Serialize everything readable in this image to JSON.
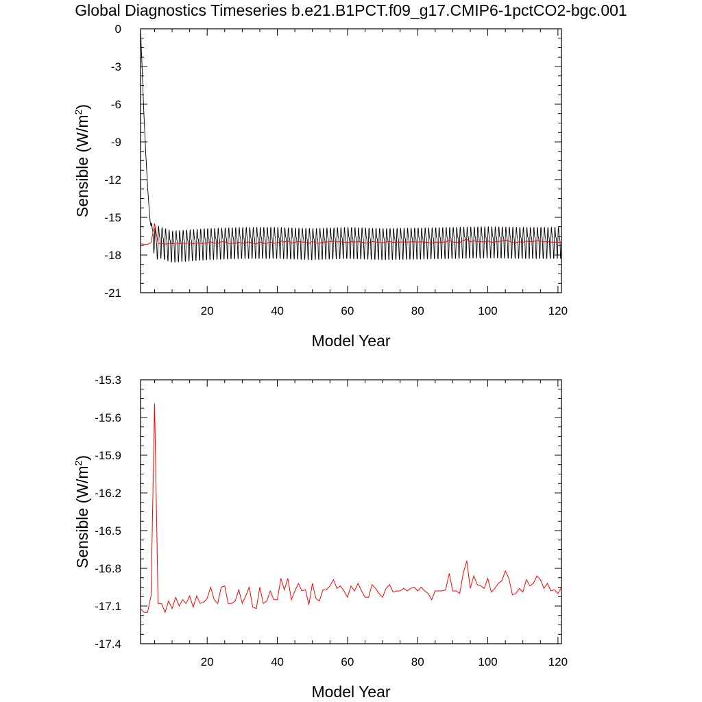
{
  "title": "Global Diagnostics Timeseries b.e21.B1PCT.f09_g17.CMIP6-1pctCO2-bgc.001",
  "colors": {
    "monthly": "#000000",
    "annual": "#ff0000"
  },
  "chart_data": [
    {
      "type": "line",
      "xlabel": "Model Year",
      "ylabel": "Sensible (W/m",
      "ylabel_sup": "2",
      "ylabel_end": ")",
      "xlim": [
        1,
        121
      ],
      "ylim": [
        -21,
        0
      ],
      "xticks": [
        20,
        40,
        60,
        80,
        100,
        120
      ],
      "xtick_labels": [
        "20",
        "40",
        "60",
        "80",
        "100",
        "120"
      ],
      "yticks": [
        0,
        -3,
        -6,
        -9,
        -12,
        -15,
        -18,
        -21
      ],
      "ytick_labels": [
        "0",
        "-3",
        "-6",
        "-9",
        "-12",
        "-15",
        "-18",
        "-21"
      ],
      "grid": false,
      "series": [
        {
          "style": "monthly",
          "x": [
            1,
            1.5,
            2,
            2.5,
            3,
            3.5,
            4,
            4.5,
            5,
            5.5,
            6,
            10,
            15,
            20,
            30,
            40,
            50,
            60,
            70,
            80,
            90,
            100,
            110,
            121
          ],
          "y": [
            0,
            -3.5,
            -7.0,
            -10.0,
            -12.5,
            -14.5,
            -15.8,
            -16.3,
            -16.8,
            -17.2,
            -16.8,
            -17.2,
            -17.1,
            -17.0,
            -16.9,
            -16.9,
            -17.0,
            -16.9,
            -17.0,
            -16.95,
            -16.9,
            -16.85,
            -16.9,
            -16.9
          ],
          "seasonal_amplitude": 1.4
        },
        {
          "style": "annual",
          "x": [
            1,
            2,
            3,
            4,
            5,
            6,
            7,
            8,
            9,
            10,
            11,
            12,
            13,
            14,
            15,
            16,
            17,
            18,
            19,
            20,
            21,
            22,
            23,
            24,
            25,
            26,
            27,
            28,
            29,
            30,
            31,
            32,
            33,
            34,
            35,
            36,
            37,
            38,
            39,
            40,
            41,
            42,
            43,
            44,
            45,
            46,
            47,
            48,
            49,
            50,
            51,
            52,
            53,
            54,
            55,
            56,
            57,
            58,
            59,
            60,
            61,
            62,
            63,
            64,
            65,
            66,
            67,
            68,
            69,
            70,
            71,
            72,
            73,
            74,
            75,
            76,
            77,
            78,
            79,
            80,
            81,
            82,
            83,
            84,
            85,
            86,
            87,
            88,
            89,
            90,
            91,
            92,
            93,
            94,
            95,
            96,
            97,
            98,
            99,
            100,
            101,
            102,
            103,
            104,
            105,
            106,
            107,
            108,
            109,
            110,
            111,
            112,
            113,
            114,
            115,
            116,
            117,
            118,
            119,
            120,
            121
          ],
          "y": [
            -17.12,
            -17.15,
            -17.15,
            -17.02,
            -15.49,
            -17.08,
            -17.08,
            -17.15,
            -17.06,
            -17.12,
            -17.03,
            -17.1,
            -17.05,
            -17.08,
            -17.02,
            -17.11,
            -17.02,
            -17.08,
            -17.07,
            -17.04,
            -16.95,
            -17.05,
            -17.08,
            -16.95,
            -16.94,
            -17.08,
            -17.08,
            -17.06,
            -16.97,
            -17.08,
            -17.02,
            -16.95,
            -17.11,
            -17.12,
            -16.95,
            -17.08,
            -17.06,
            -16.98,
            -17.05,
            -17.05,
            -16.88,
            -16.97,
            -16.88,
            -17.05,
            -16.98,
            -16.92,
            -16.98,
            -16.97,
            -17.09,
            -16.92,
            -17.04,
            -17.06,
            -16.97,
            -16.97,
            -16.94,
            -16.89,
            -16.96,
            -16.94,
            -16.98,
            -17.03,
            -16.94,
            -16.98,
            -16.92,
            -16.98,
            -17.03,
            -17.03,
            -16.93,
            -16.96,
            -17.0,
            -17.03,
            -16.96,
            -16.93,
            -16.99,
            -16.98,
            -16.98,
            -16.96,
            -16.98,
            -16.96,
            -16.95,
            -16.98,
            -16.95,
            -16.98,
            -17.0,
            -17.05,
            -16.98,
            -16.98,
            -16.98,
            -16.97,
            -16.84,
            -16.98,
            -16.98,
            -17.0,
            -16.84,
            -16.74,
            -16.96,
            -16.86,
            -16.93,
            -16.94,
            -16.96,
            -16.88,
            -16.99,
            -16.96,
            -16.92,
            -16.9,
            -16.82,
            -16.88,
            -17.01,
            -17.0,
            -16.96,
            -16.99,
            -16.89,
            -16.94,
            -16.92,
            -16.86,
            -16.89,
            -16.96,
            -16.92,
            -16.98,
            -16.97,
            -17.0,
            -16.95
          ]
        }
      ]
    },
    {
      "type": "line",
      "xlabel": "Model Year",
      "ylabel": "Sensible (W/m",
      "ylabel_sup": "2",
      "ylabel_end": ")",
      "xlim": [
        1,
        121
      ],
      "ylim": [
        -17.4,
        -15.3
      ],
      "xticks": [
        20,
        40,
        60,
        80,
        100,
        120
      ],
      "xtick_labels": [
        "20",
        "40",
        "60",
        "80",
        "100",
        "120"
      ],
      "yticks": [
        -15.3,
        -15.6,
        -15.9,
        -16.2,
        -16.5,
        -16.8,
        -17.1,
        -17.4
      ],
      "ytick_labels": [
        "-15.3",
        "-15.6",
        "-15.9",
        "-16.2",
        "-16.5",
        "-16.8",
        "-17.1",
        "-17.4"
      ],
      "grid": false,
      "series": [
        {
          "style": "annual",
          "ref": 1
        }
      ]
    }
  ]
}
